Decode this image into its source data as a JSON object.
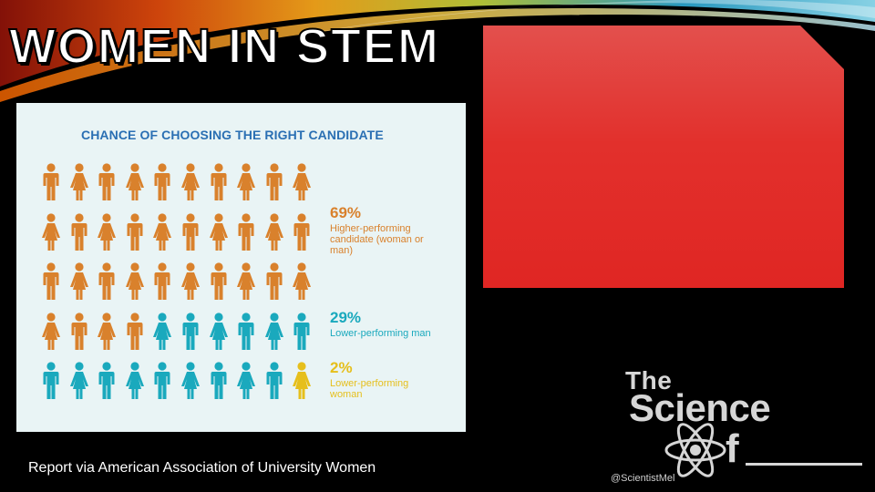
{
  "slide": {
    "title": "WOMEN IN STEM",
    "caption": "Report via American Association of University Women"
  },
  "infographic": {
    "title": "CHANCE OF CHOOSING THE RIGHT CANDIDATE",
    "colors": {
      "orange": "#d9812c",
      "teal": "#1aa9bd",
      "yellow": "#e6bf1c"
    },
    "total_figures": 50,
    "groups": [
      {
        "percent": "69%",
        "description": "Higher-performing candidate (woman or man)",
        "value": 69,
        "count": 34,
        "color": "#d9812c",
        "class": "c-orange"
      },
      {
        "percent": "29%",
        "description": "Lower-performing man",
        "value": 29,
        "count": 15,
        "color": "#1aa9bd",
        "class": "c-teal"
      },
      {
        "percent": "2%",
        "description": "Lower-performing woman",
        "value": 2,
        "count": 1,
        "color": "#e6bf1c",
        "class": "c-yellow"
      }
    ]
  },
  "logo": {
    "line1": "The",
    "line2": "Science",
    "line3": "f",
    "handle": "@ScientistMel",
    "color": "#d6d6d6"
  }
}
